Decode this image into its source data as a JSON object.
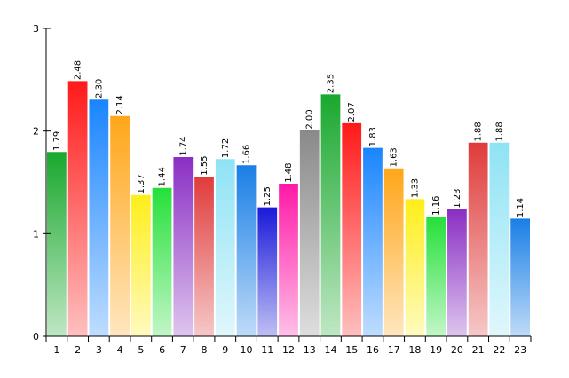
{
  "chart_data": {
    "type": "bar",
    "title": "",
    "xlabel": "",
    "ylabel": "",
    "ylim": [
      0,
      3
    ],
    "yticks": [
      "0",
      "1",
      "2",
      "3"
    ],
    "grid": false,
    "legend": "none",
    "categories": [
      "1",
      "2",
      "3",
      "4",
      "5",
      "6",
      "7",
      "8",
      "9",
      "10",
      "11",
      "12",
      "13",
      "14",
      "15",
      "16",
      "17",
      "18",
      "19",
      "20",
      "21",
      "22",
      "23"
    ],
    "values": [
      1.79,
      2.48,
      2.3,
      2.14,
      1.37,
      1.44,
      1.74,
      1.55,
      1.72,
      1.66,
      1.25,
      1.48,
      2.0,
      2.35,
      2.07,
      1.83,
      1.63,
      1.33,
      1.16,
      1.23,
      1.88,
      1.88,
      1.14
    ],
    "data_labels": [
      "1.79",
      "2.48",
      "2.30",
      "2.14",
      "1.37",
      "1.44",
      "1.74",
      "1.55",
      "1.72",
      "1.66",
      "1.25",
      "1.48",
      "2.00",
      "2.35",
      "2.07",
      "1.83",
      "1.63",
      "1.33",
      "1.16",
      "1.23",
      "1.88",
      "1.88",
      "1.14"
    ],
    "colors": [
      "#1aa82e",
      "#ff1a1a",
      "#1a85ff",
      "#ffa61a",
      "#ffee1a",
      "#26e03a",
      "#8a2fc4",
      "#e03c3c",
      "#8fe3f5",
      "#1a7fe6",
      "#1a1ad9",
      "#ff1aa8",
      "#8a8a8a",
      "#1aa82e",
      "#ff1a1a",
      "#1a85ff",
      "#ffa61a",
      "#ffee1a",
      "#26e03a",
      "#8a2fc4",
      "#e03c3c",
      "#8fe3f5",
      "#1a7fe6"
    ]
  }
}
